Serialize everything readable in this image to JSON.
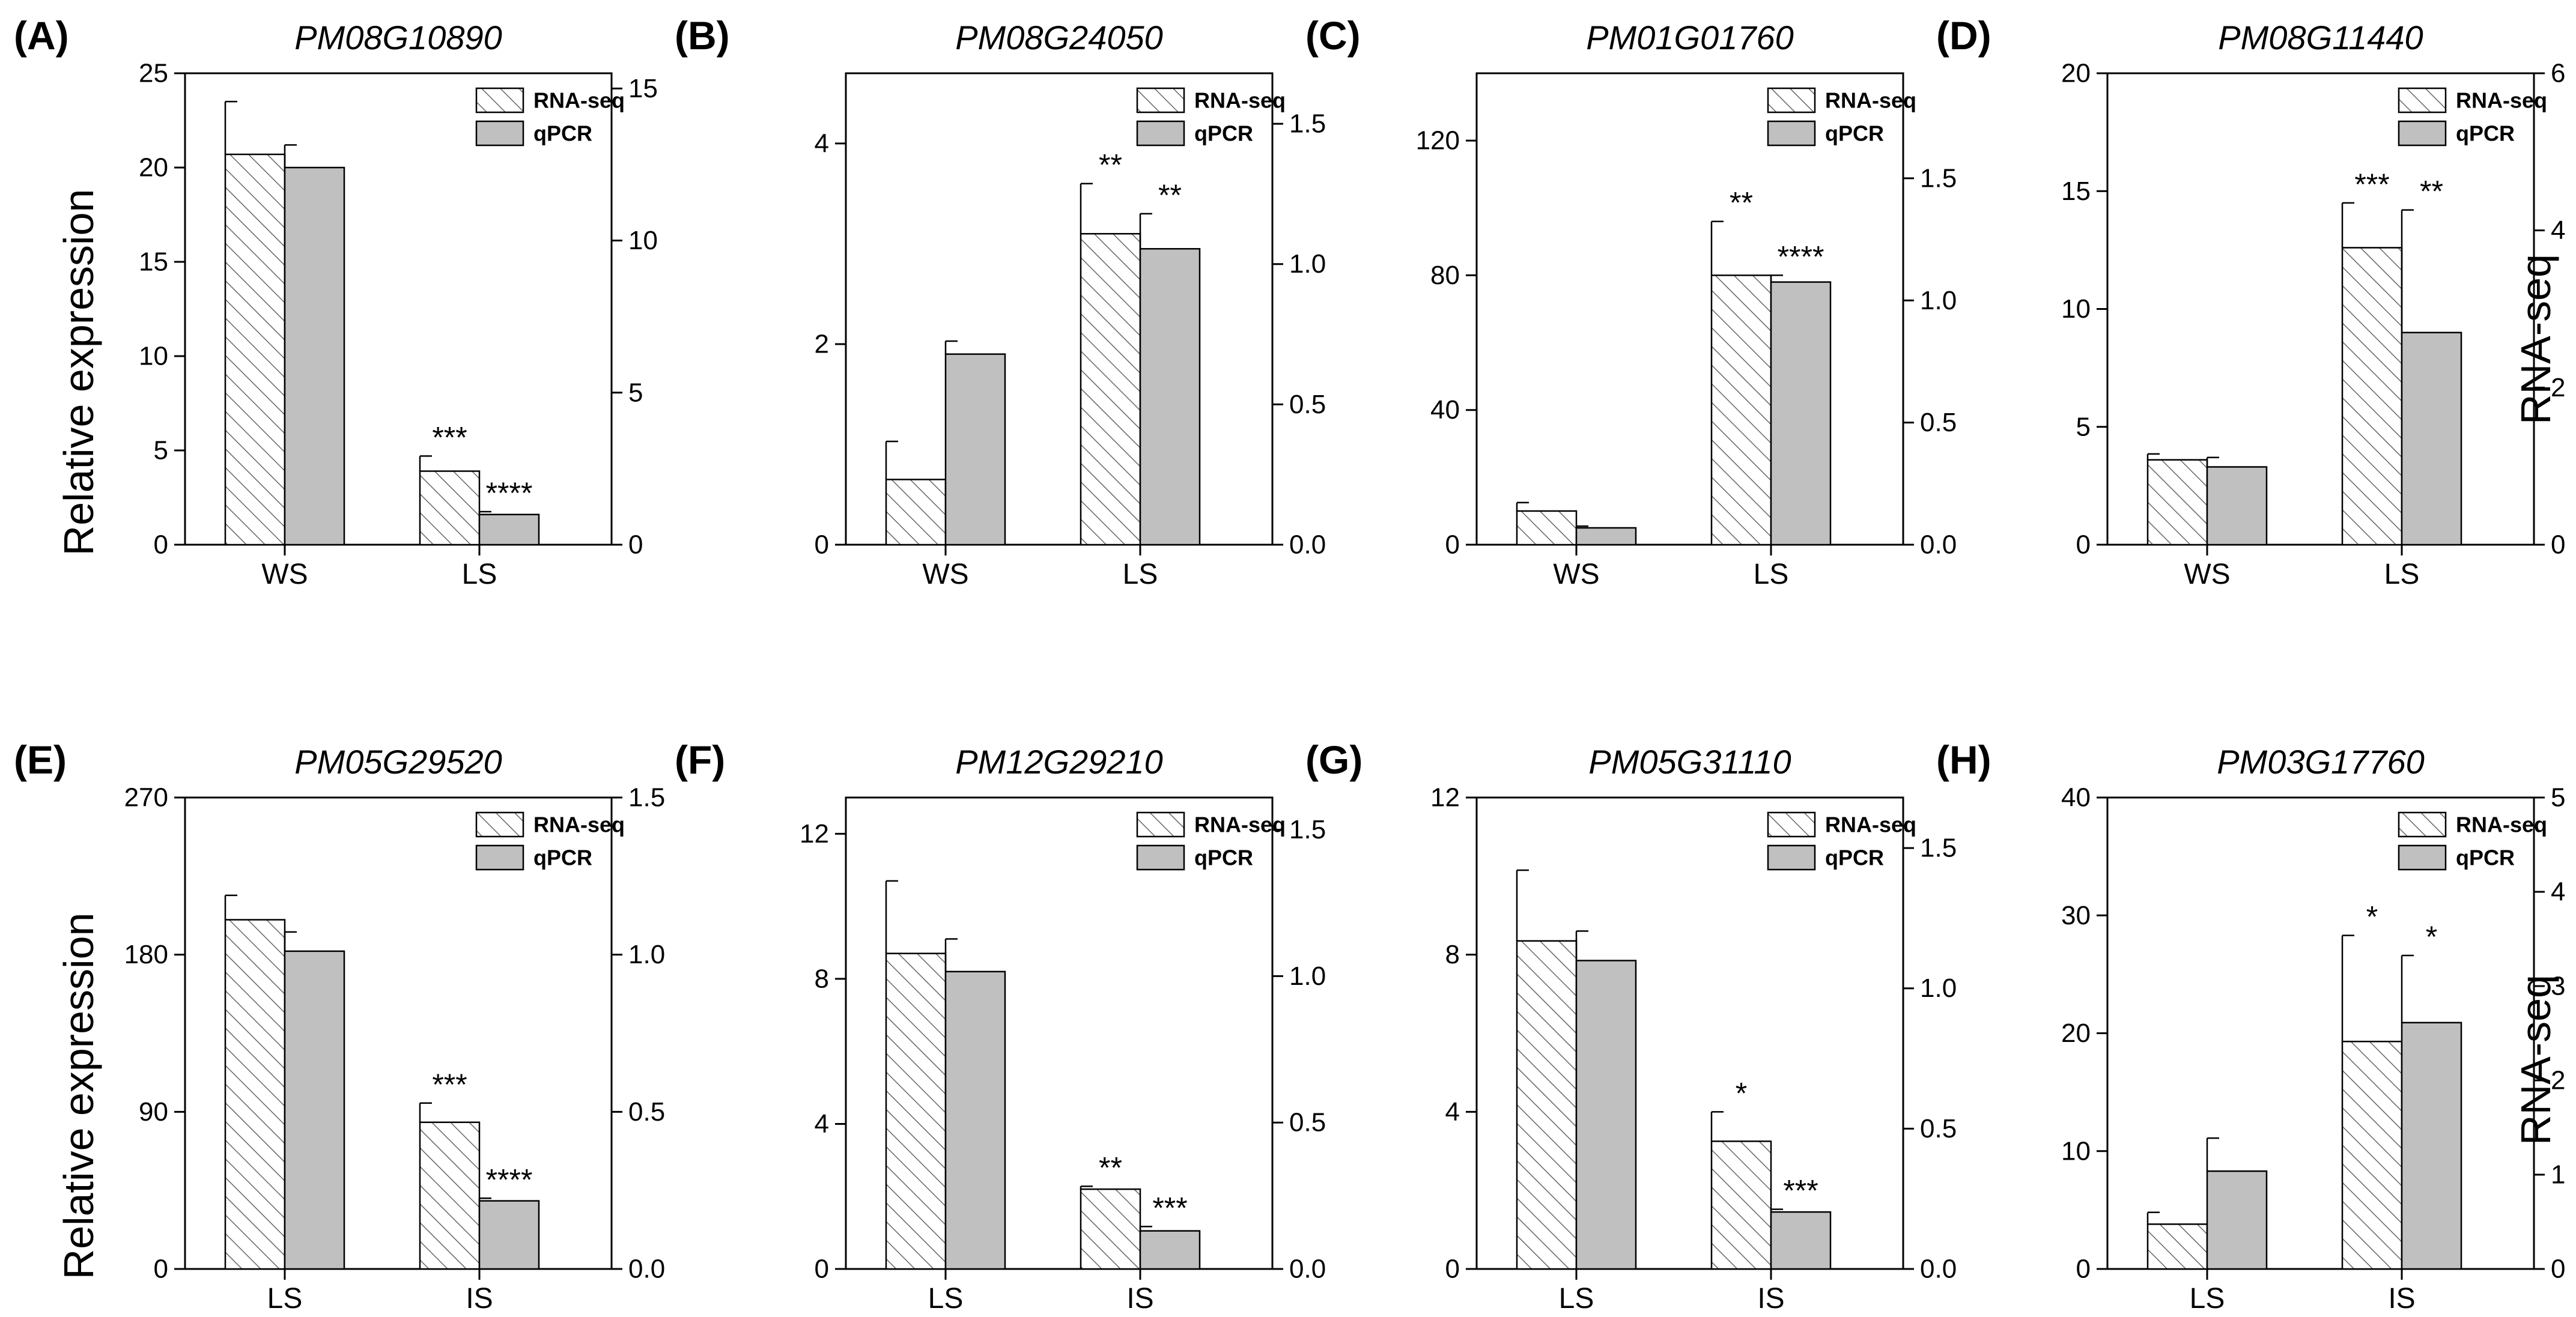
{
  "y_label_left": "Relative expression",
  "y_label_right": "RNA-seq",
  "legend": {
    "rna_label": "RNA-seq",
    "qpcr_label": "qPCR"
  },
  "colors": {
    "qpcr_fill": "#c0c0c0",
    "rna_hatch": "#666666",
    "axis": "#000000"
  },
  "chart_data": [
    {
      "panel": "(A)",
      "title": "PM08G10890",
      "type": "bar",
      "categories": [
        "WS",
        "LS"
      ],
      "left_axis": {
        "min": 0,
        "max": 25,
        "ticks": [
          0,
          5,
          10,
          15,
          20,
          25
        ],
        "labels": [
          "0",
          "5",
          "10",
          "15",
          "20",
          "25"
        ]
      },
      "right_axis": {
        "min": 0,
        "max": 15.5,
        "ticks": [
          0,
          5,
          10,
          15
        ],
        "labels": [
          "0",
          "5",
          "10",
          "15"
        ]
      },
      "series": [
        {
          "name": "RNA-seq",
          "axis": "left",
          "values": [
            20.7,
            3.9
          ],
          "errors": [
            2.8,
            0.8
          ],
          "sig": [
            "",
            "***"
          ]
        },
        {
          "name": "qPCR",
          "axis": "left",
          "values": [
            20.0,
            1.6
          ],
          "errors": [
            1.2,
            0.15
          ],
          "sig": [
            "",
            "****"
          ]
        }
      ]
    },
    {
      "panel": "(B)",
      "title": "PM08G24050",
      "type": "bar",
      "categories": [
        "WS",
        "LS"
      ],
      "left_axis": {
        "min": 0,
        "max": 4.7,
        "ticks": [
          0,
          2,
          4
        ],
        "labels": [
          "0",
          "2",
          "4"
        ]
      },
      "right_axis": {
        "min": 0,
        "max": 1.68,
        "ticks": [
          0,
          0.5,
          1.0,
          1.5
        ],
        "labels": [
          "0.0",
          "0.5",
          "1.0",
          "1.5"
        ]
      },
      "series": [
        {
          "name": "RNA-seq",
          "axis": "left",
          "values": [
            0.65,
            3.1
          ],
          "errors": [
            0.38,
            0.5
          ],
          "sig": [
            "",
            "**"
          ]
        },
        {
          "name": "qPCR",
          "axis": "left",
          "values": [
            1.9,
            2.95
          ],
          "errors": [
            0.13,
            0.35
          ],
          "sig": [
            "",
            "**"
          ]
        }
      ]
    },
    {
      "panel": "(C)",
      "title": "PM01G01760",
      "type": "bar",
      "categories": [
        "WS",
        "LS"
      ],
      "left_axis": {
        "min": 0,
        "max": 140,
        "ticks": [
          0,
          40,
          80,
          120
        ],
        "labels": [
          "0",
          "40",
          "80",
          "120"
        ]
      },
      "right_axis": {
        "min": 0,
        "max": 1.93,
        "ticks": [
          0,
          0.5,
          1.0,
          1.5
        ],
        "labels": [
          "0.0",
          "0.5",
          "1.0",
          "1.5"
        ]
      },
      "series": [
        {
          "name": "RNA-seq",
          "axis": "left",
          "values": [
            10,
            80
          ],
          "errors": [
            2.5,
            16
          ],
          "sig": [
            "",
            "**"
          ]
        },
        {
          "name": "qPCR",
          "axis": "left",
          "values": [
            5,
            78
          ],
          "errors": [
            0.5,
            2
          ],
          "sig": [
            "",
            "****"
          ]
        }
      ]
    },
    {
      "panel": "(D)",
      "title": "PM08G11440",
      "type": "bar",
      "categories": [
        "WS",
        "LS"
      ],
      "left_axis": {
        "min": 0,
        "max": 20,
        "ticks": [
          0,
          5,
          10,
          15,
          20
        ],
        "labels": [
          "0",
          "5",
          "10",
          "15",
          "20"
        ]
      },
      "right_axis": {
        "min": 0,
        "max": 6,
        "ticks": [
          0,
          2,
          4,
          6
        ],
        "labels": [
          "0",
          "2",
          "4",
          "6"
        ]
      },
      "series": [
        {
          "name": "RNA-seq",
          "axis": "left",
          "values": [
            3.6,
            12.6
          ],
          "errors": [
            0.25,
            1.9
          ],
          "sig": [
            "",
            "***"
          ]
        },
        {
          "name": "qPCR",
          "axis": "left",
          "values": [
            3.3,
            9.0
          ],
          "errors": [
            0.4,
            5.2
          ],
          "sig": [
            "",
            "**"
          ]
        }
      ]
    },
    {
      "panel": "(E)",
      "title": "PM05G29520",
      "type": "bar",
      "categories": [
        "LS",
        "IS"
      ],
      "left_axis": {
        "min": 0,
        "max": 270,
        "ticks": [
          0,
          90,
          180,
          270
        ],
        "labels": [
          "0",
          "90",
          "180",
          "270"
        ]
      },
      "right_axis": {
        "min": 0,
        "max": 1.5,
        "ticks": [
          0,
          0.5,
          1.0,
          1.5
        ],
        "labels": [
          "0.0",
          "0.5",
          "1.0",
          "1.5"
        ]
      },
      "series": [
        {
          "name": "RNA-seq",
          "axis": "left",
          "values": [
            200,
            84
          ],
          "errors": [
            14,
            11
          ],
          "sig": [
            "",
            "***"
          ]
        },
        {
          "name": "qPCR",
          "axis": "left",
          "values": [
            182,
            39
          ],
          "errors": [
            11,
            1.5
          ],
          "sig": [
            "",
            "****"
          ]
        }
      ]
    },
    {
      "panel": "(F)",
      "title": "PM12G29210",
      "type": "bar",
      "categories": [
        "LS",
        "IS"
      ],
      "left_axis": {
        "min": 0,
        "max": 13,
        "ticks": [
          0,
          4,
          8,
          12
        ],
        "labels": [
          "0",
          "4",
          "8",
          "12"
        ]
      },
      "right_axis": {
        "min": 0,
        "max": 1.61,
        "ticks": [
          0,
          0.5,
          1.0,
          1.5
        ],
        "labels": [
          "0.0",
          "0.5",
          "1.0",
          "1.5"
        ]
      },
      "series": [
        {
          "name": "RNA-seq",
          "axis": "left",
          "values": [
            8.7,
            2.2
          ],
          "errors": [
            2.0,
            0.08
          ],
          "sig": [
            "",
            "**"
          ]
        },
        {
          "name": "qPCR",
          "axis": "left",
          "values": [
            8.2,
            1.05
          ],
          "errors": [
            0.9,
            0.12
          ],
          "sig": [
            "",
            "***"
          ]
        }
      ]
    },
    {
      "panel": "(G)",
      "title": "PM05G31110",
      "type": "bar",
      "categories": [
        "LS",
        "IS"
      ],
      "left_axis": {
        "min": 0,
        "max": 12,
        "ticks": [
          0,
          4,
          8,
          12
        ],
        "labels": [
          "0",
          "4",
          "8",
          "12"
        ]
      },
      "right_axis": {
        "min": 0,
        "max": 1.68,
        "ticks": [
          0,
          0.5,
          1.0,
          1.5
        ],
        "labels": [
          "0.0",
          "0.5",
          "1.0",
          "1.5"
        ]
      },
      "series": [
        {
          "name": "RNA-seq",
          "axis": "left",
          "values": [
            8.35,
            3.25
          ],
          "errors": [
            1.8,
            0.75
          ],
          "sig": [
            "",
            "*"
          ]
        },
        {
          "name": "qPCR",
          "axis": "left",
          "values": [
            7.85,
            1.45
          ],
          "errors": [
            0.75,
            0.07
          ],
          "sig": [
            "",
            "***"
          ]
        }
      ]
    },
    {
      "panel": "(H)",
      "title": "PM03G17760",
      "type": "bar",
      "categories": [
        "LS",
        "IS"
      ],
      "left_axis": {
        "min": 0,
        "max": 40,
        "ticks": [
          0,
          10,
          20,
          30,
          40
        ],
        "labels": [
          "0",
          "10",
          "20",
          "30",
          "40"
        ]
      },
      "right_axis": {
        "min": 0,
        "max": 5,
        "ticks": [
          0,
          1,
          2,
          3,
          4,
          5
        ],
        "labels": [
          "0",
          "1",
          "2",
          "3",
          "4",
          "5"
        ]
      },
      "series": [
        {
          "name": "RNA-seq",
          "axis": "left",
          "values": [
            3.8,
            19.3
          ],
          "errors": [
            1.0,
            9.0
          ],
          "sig": [
            "",
            "*"
          ]
        },
        {
          "name": "qPCR",
          "axis": "left",
          "values": [
            8.3,
            20.9
          ],
          "errors": [
            2.8,
            5.7
          ],
          "sig": [
            "",
            "*"
          ]
        }
      ]
    }
  ]
}
